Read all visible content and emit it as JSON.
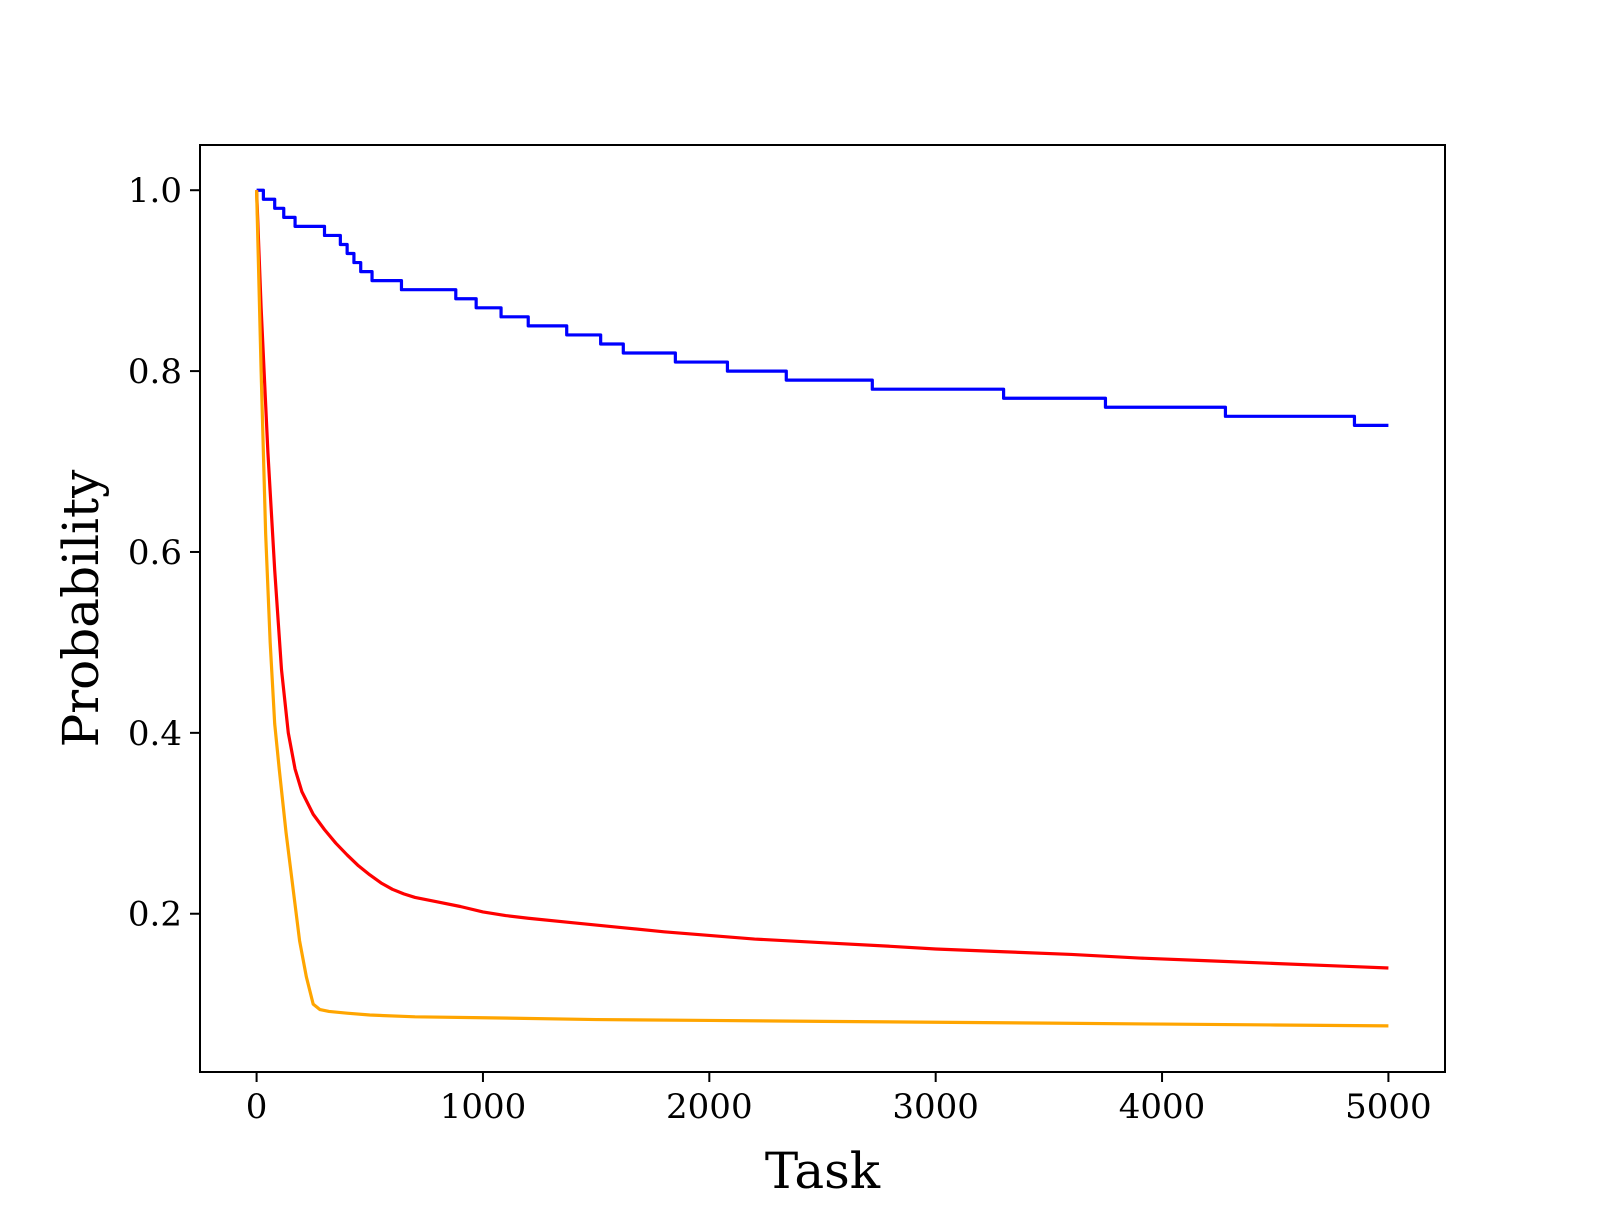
{
  "chart_data": {
    "type": "line",
    "title": "",
    "xlabel": "Task",
    "ylabel": "Probability",
    "xlim": [
      -250,
      5250
    ],
    "ylim": [
      0.025,
      1.05
    ],
    "x_ticks": [
      0,
      1000,
      2000,
      3000,
      4000,
      5000
    ],
    "x_tick_labels": [
      "0",
      "1000",
      "2000",
      "3000",
      "4000",
      "5000"
    ],
    "y_ticks": [
      0.2,
      0.4,
      0.6,
      0.8,
      1.0
    ],
    "y_tick_labels": [
      "0.2",
      "0.4",
      "0.6",
      "0.8",
      "1.0"
    ],
    "grid": false,
    "legend": "none",
    "series": [
      {
        "color": "#0000ff",
        "step": true,
        "x": [
          0,
          30,
          80,
          120,
          170,
          300,
          370,
          400,
          430,
          460,
          510,
          640,
          880,
          970,
          1080,
          1200,
          1370,
          1520,
          1620,
          1850,
          2080,
          2340,
          2720,
          3300,
          3750,
          4280,
          4850,
          5000
        ],
        "y": [
          1.0,
          0.99,
          0.98,
          0.97,
          0.96,
          0.95,
          0.94,
          0.93,
          0.92,
          0.91,
          0.9,
          0.89,
          0.88,
          0.87,
          0.86,
          0.85,
          0.84,
          0.83,
          0.82,
          0.81,
          0.8,
          0.79,
          0.78,
          0.77,
          0.76,
          0.75,
          0.74,
          0.74
        ]
      },
      {
        "color": "#ff0000",
        "step": false,
        "x": [
          0,
          20,
          50,
          80,
          110,
          140,
          170,
          200,
          250,
          300,
          350,
          400,
          450,
          500,
          550,
          600,
          650,
          700,
          800,
          900,
          1000,
          1100,
          1200,
          1400,
          1600,
          1800,
          2000,
          2200,
          2500,
          2800,
          3000,
          3300,
          3600,
          3900,
          4200,
          4500,
          4800,
          5000
        ],
        "y": [
          1.0,
          0.87,
          0.71,
          0.58,
          0.47,
          0.4,
          0.36,
          0.335,
          0.31,
          0.293,
          0.278,
          0.265,
          0.253,
          0.243,
          0.234,
          0.227,
          0.222,
          0.218,
          0.213,
          0.208,
          0.202,
          0.198,
          0.195,
          0.19,
          0.185,
          0.18,
          0.176,
          0.172,
          0.168,
          0.164,
          0.161,
          0.158,
          0.155,
          0.151,
          0.148,
          0.145,
          0.142,
          0.14
        ]
      },
      {
        "color": "#ffa500",
        "step": false,
        "x": [
          0,
          20,
          40,
          60,
          80,
          100,
          130,
          160,
          190,
          220,
          250,
          280,
          320,
          400,
          500,
          700,
          1000,
          1500,
          2000,
          2500,
          3000,
          3500,
          4000,
          4500,
          5000
        ],
        "y": [
          1.0,
          0.8,
          0.62,
          0.5,
          0.41,
          0.36,
          0.29,
          0.23,
          0.17,
          0.13,
          0.1,
          0.094,
          0.092,
          0.09,
          0.088,
          0.086,
          0.085,
          0.083,
          0.082,
          0.081,
          0.08,
          0.079,
          0.078,
          0.077,
          0.076
        ]
      }
    ]
  }
}
